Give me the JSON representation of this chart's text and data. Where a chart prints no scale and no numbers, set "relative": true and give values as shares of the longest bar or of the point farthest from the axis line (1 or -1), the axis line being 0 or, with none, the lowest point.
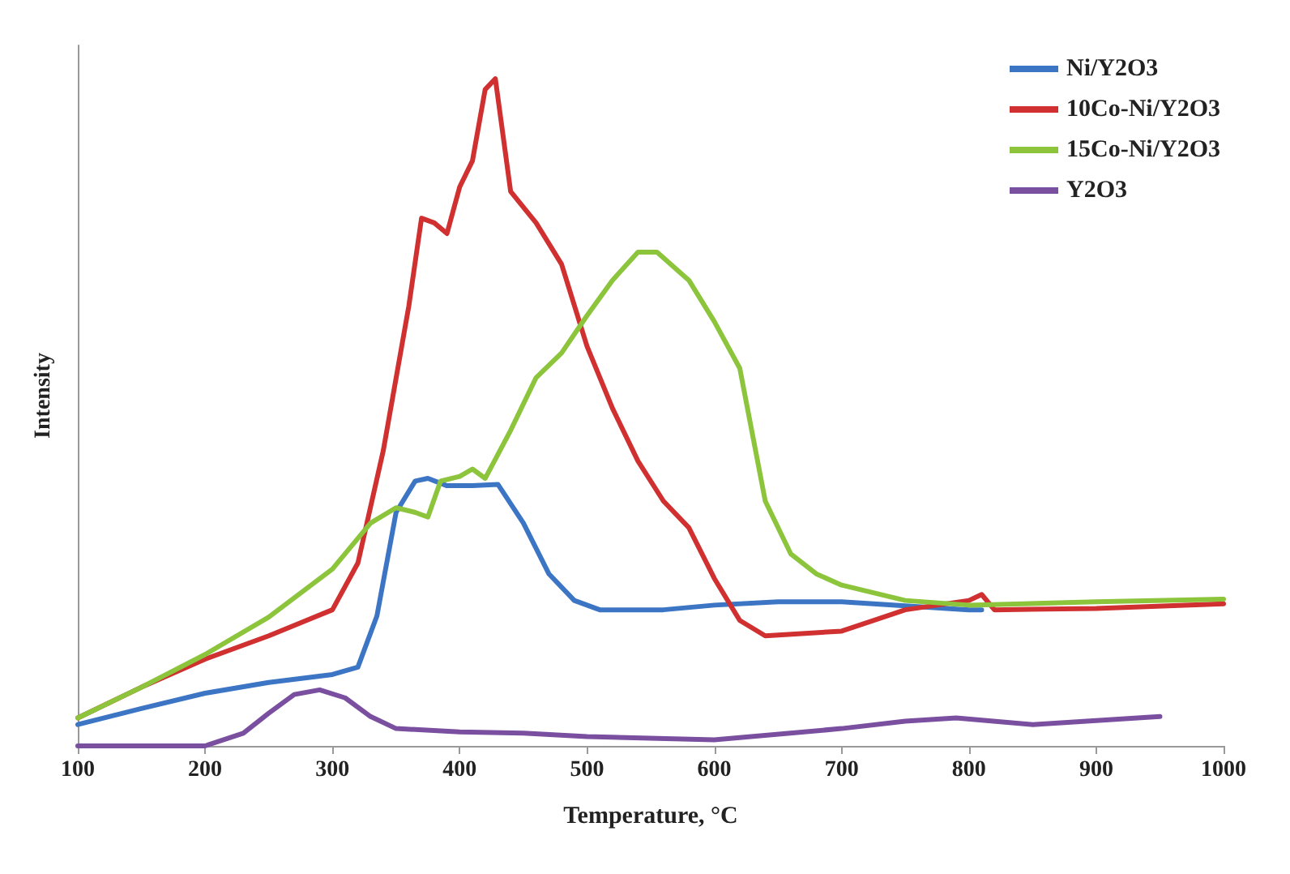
{
  "chart_data": {
    "type": "line",
    "xlabel": "Temperature, °C",
    "ylabel": "Intensity",
    "relative": true,
    "grid": false,
    "legend": "top right",
    "marker": "none",
    "line_style": "solid",
    "xlim": [
      100,
      1000
    ],
    "xticks": [
      100,
      200,
      300,
      400,
      500,
      600,
      700,
      800,
      900,
      1000
    ],
    "series": [
      {
        "name": "Ni/Y2O3",
        "color": "#3b75c4",
        "x": [
          100,
          150,
          200,
          250,
          300,
          320,
          335,
          350,
          365,
          375,
          390,
          410,
          430,
          450,
          470,
          490,
          510,
          560,
          600,
          650,
          700,
          800,
          810
        ],
        "values": [
          0.032,
          0.056,
          0.079,
          0.095,
          0.107,
          0.118,
          0.195,
          0.35,
          0.397,
          0.401,
          0.39,
          0.39,
          0.392,
          0.334,
          0.258,
          0.218,
          0.204,
          0.204,
          0.211,
          0.216,
          0.216,
          0.204,
          0.204
        ]
      },
      {
        "name": "10Co-Ni/Y2O3",
        "color": "#d03030",
        "x": [
          100,
          150,
          200,
          250,
          300,
          320,
          340,
          360,
          370,
          380,
          390,
          400,
          410,
          420,
          428,
          440,
          460,
          480,
          500,
          520,
          540,
          560,
          580,
          600,
          620,
          640,
          700,
          750,
          800,
          810,
          820,
          900,
          1000
        ],
        "values": [
          0.042,
          0.088,
          0.13,
          0.165,
          0.204,
          0.274,
          0.443,
          0.659,
          0.791,
          0.784,
          0.768,
          0.838,
          0.877,
          0.984,
          1.0,
          0.831,
          0.784,
          0.722,
          0.599,
          0.506,
          0.427,
          0.367,
          0.327,
          0.251,
          0.188,
          0.165,
          0.172,
          0.204,
          0.218,
          0.227,
          0.204,
          0.206,
          0.213
        ]
      },
      {
        "name": "15Co-Ni/Y2O3",
        "color": "#8cc43c",
        "x": [
          100,
          150,
          200,
          250,
          300,
          330,
          350,
          365,
          375,
          385,
          400,
          410,
          420,
          440,
          460,
          480,
          500,
          520,
          540,
          555,
          580,
          600,
          620,
          640,
          660,
          680,
          700,
          750,
          800,
          900,
          1000
        ],
        "values": [
          0.042,
          0.088,
          0.137,
          0.193,
          0.265,
          0.334,
          0.357,
          0.35,
          0.343,
          0.397,
          0.404,
          0.415,
          0.401,
          0.473,
          0.552,
          0.589,
          0.645,
          0.698,
          0.74,
          0.74,
          0.698,
          0.636,
          0.566,
          0.367,
          0.288,
          0.258,
          0.241,
          0.218,
          0.211,
          0.216,
          0.22
        ]
      },
      {
        "name": "Y2O3",
        "color": "#7a4fa0",
        "x": [
          100,
          200,
          230,
          250,
          270,
          290,
          310,
          330,
          350,
          400,
          450,
          500,
          600,
          700,
          750,
          790,
          850,
          950
        ],
        "values": [
          0,
          0,
          0.019,
          0.049,
          0.077,
          0.084,
          0.072,
          0.044,
          0.026,
          0.021,
          0.019,
          0.014,
          0.009,
          0.026,
          0.037,
          0.042,
          0.032,
          0.044
        ]
      }
    ]
  }
}
